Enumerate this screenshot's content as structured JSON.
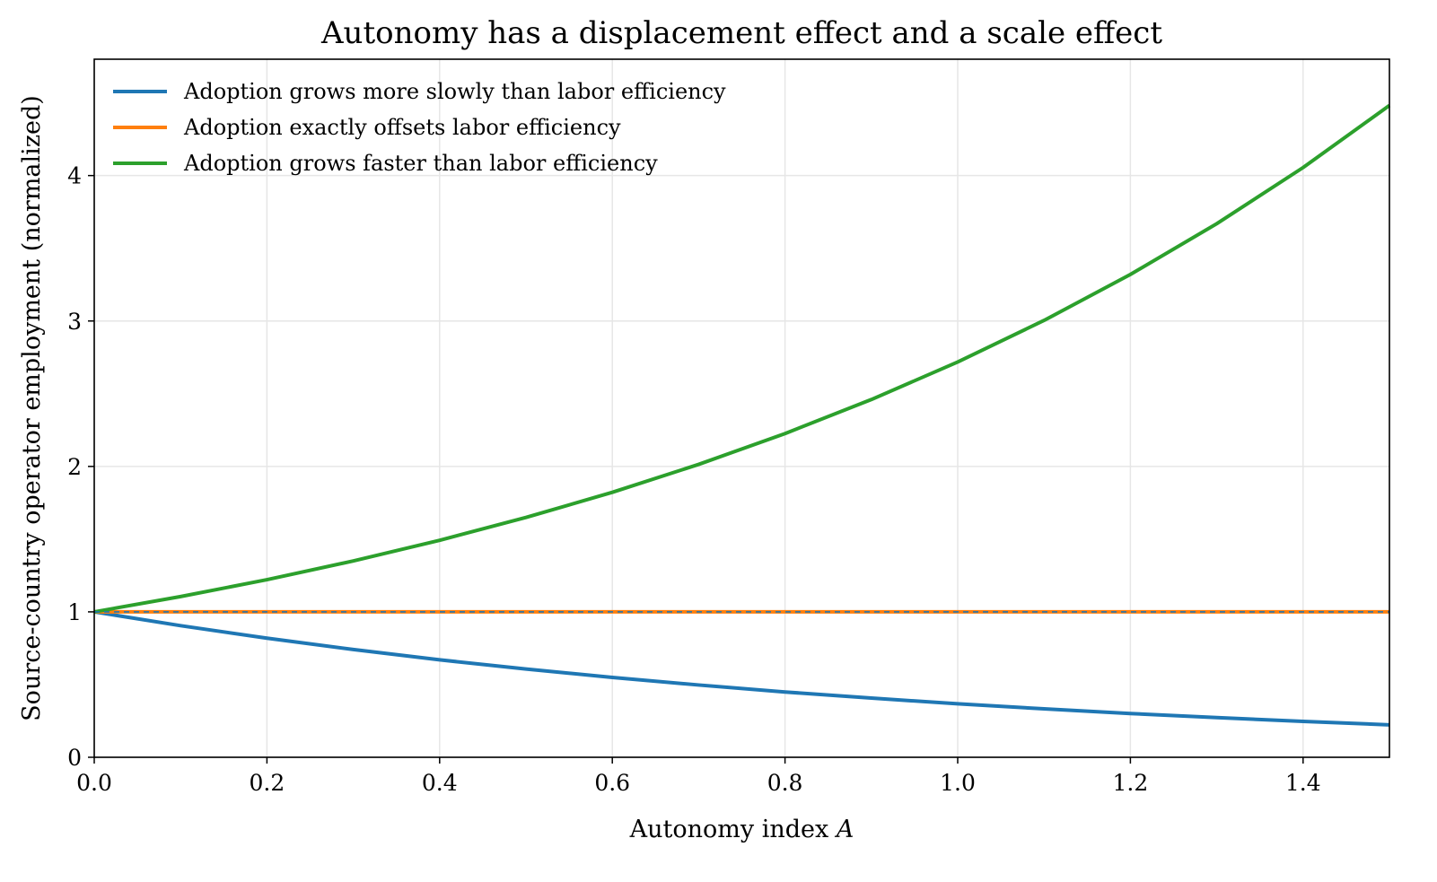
{
  "chart_data": {
    "type": "line",
    "title": "Autonomy has a displacement effect and a scale effect",
    "xlabel": "Autonomy index",
    "xlabel_var": "A",
    "ylabel": "Source-country operator employment (normalized)",
    "xlim": [
      0.0,
      1.5
    ],
    "ylim": [
      0,
      4.8
    ],
    "xticks": [
      0.0,
      0.2,
      0.4,
      0.6,
      0.8,
      1.0,
      1.2,
      1.4
    ],
    "xtick_labels": [
      "0.0",
      "0.2",
      "0.4",
      "0.6",
      "0.8",
      "1.0",
      "1.2",
      "1.4"
    ],
    "yticks": [
      0,
      1,
      2,
      3,
      4
    ],
    "ytick_labels": [
      "0",
      "1",
      "2",
      "3",
      "4"
    ],
    "grid": true,
    "legend_position": "top-left",
    "x": [
      0.0,
      0.1,
      0.2,
      0.3,
      0.4,
      0.5,
      0.6,
      0.7,
      0.8,
      0.9,
      1.0,
      1.1,
      1.2,
      1.3,
      1.4,
      1.5
    ],
    "series": [
      {
        "name": "Adoption grows more slowly than labor efficiency",
        "color": "#1f77b4",
        "values": [
          1.0,
          0.905,
          0.819,
          0.741,
          0.67,
          0.607,
          0.549,
          0.497,
          0.449,
          0.407,
          0.368,
          0.333,
          0.301,
          0.273,
          0.247,
          0.223
        ]
      },
      {
        "name": "Adoption exactly offsets labor efficiency",
        "color": "#ff7f0e",
        "values": [
          1.0,
          1.0,
          1.0,
          1.0,
          1.0,
          1.0,
          1.0,
          1.0,
          1.0,
          1.0,
          1.0,
          1.0,
          1.0,
          1.0,
          1.0,
          1.0
        ]
      },
      {
        "name": "Adoption grows faster than labor efficiency",
        "color": "#2ca02c",
        "values": [
          1.0,
          1.105,
          1.221,
          1.35,
          1.492,
          1.649,
          1.822,
          2.014,
          2.226,
          2.46,
          2.718,
          3.004,
          3.32,
          3.669,
          4.055,
          4.482
        ]
      }
    ],
    "reference_line": {
      "y": 1,
      "style": "dashed",
      "color": "#1f77b4"
    }
  }
}
